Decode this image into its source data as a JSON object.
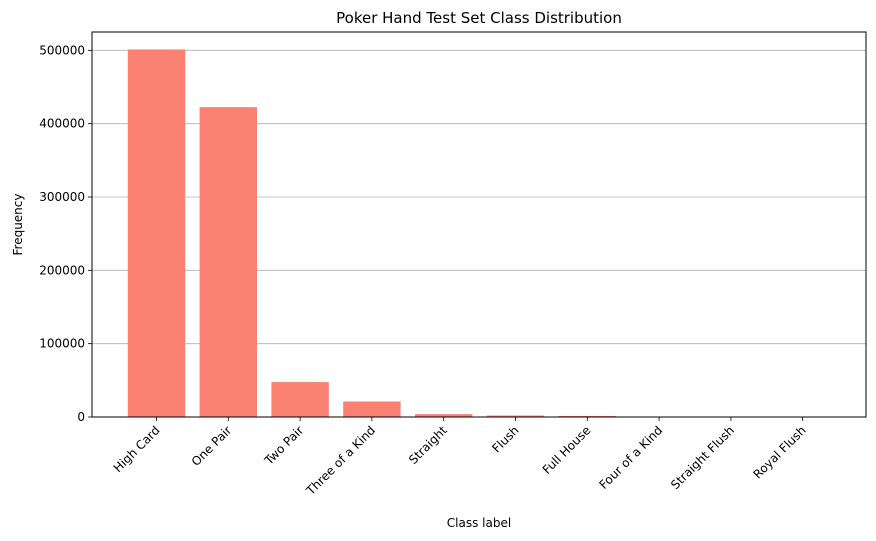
{
  "chart_data": {
    "type": "bar",
    "title": "Poker Hand Test Set Class Distribution",
    "xlabel": "Class label",
    "ylabel": "Frequency",
    "categories": [
      "High Card",
      "One Pair",
      "Two Pair",
      "Three of a Kind",
      "Straight",
      "Flush",
      "Full House",
      "Four of a Kind",
      "Straight Flush",
      "Royal Flush"
    ],
    "values": [
      501209,
      422498,
      47622,
      21121,
      3885,
      1996,
      1424,
      230,
      12,
      3
    ],
    "ylim": [
      0,
      525000
    ],
    "yticks": [
      0,
      100000,
      200000,
      300000,
      400000,
      500000
    ],
    "ytick_labels": [
      "0",
      "100000",
      "200000",
      "300000",
      "400000",
      "500000"
    ],
    "grid": "y",
    "bar_color": "#fa8072",
    "grid_color": "#b0b0b0",
    "xtick_rotation": 45
  }
}
